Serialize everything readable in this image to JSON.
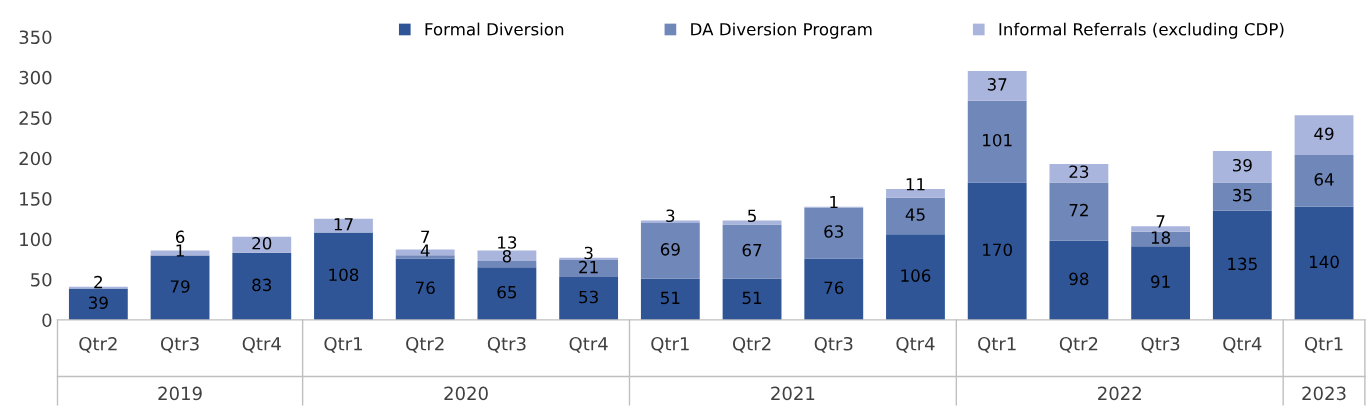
{
  "chart_data": {
    "type": "bar",
    "stacked": true,
    "categories": [
      "Qtr2",
      "Qtr3",
      "Qtr4",
      "Qtr1",
      "Qtr2",
      "Qtr3",
      "Qtr4",
      "Qtr1",
      "Qtr2",
      "Qtr3",
      "Qtr4",
      "Qtr1",
      "Qtr2",
      "Qtr3",
      "Qtr4",
      "Qtr1"
    ],
    "series": [
      {
        "name": "Formal Diversion",
        "color": "#2f5597",
        "values": [
          39,
          79,
          83,
          108,
          76,
          65,
          53,
          51,
          51,
          76,
          106,
          170,
          98,
          91,
          135,
          140
        ],
        "value_labels": [
          "39",
          "79",
          "83",
          "108",
          "76",
          "65",
          "53",
          "51",
          "51",
          "76",
          "106",
          "170",
          "98",
          "91",
          "135",
          "140"
        ]
      },
      {
        "name": "DA Diversion Program",
        "color": "#6f87b9",
        "values": [
          0,
          1,
          0,
          0,
          4,
          8,
          21,
          69,
          67,
          63,
          45,
          101,
          72,
          18,
          35,
          64
        ],
        "value_labels": [
          null,
          "1",
          null,
          null,
          "4",
          "8",
          "21",
          "69",
          "67",
          "63",
          "45",
          "101",
          "72",
          "18",
          "35",
          "64"
        ]
      },
      {
        "name": "Informal Referrals (excluding CDP)",
        "color": "#a9b5dc",
        "values": [
          2,
          6,
          20,
          17,
          7,
          13,
          3,
          3,
          5,
          1,
          11,
          37,
          23,
          7,
          39,
          49
        ],
        "value_labels": [
          "2",
          "6",
          "20",
          "17",
          "7",
          "13",
          "3",
          "3",
          "5",
          "1",
          "11",
          "37",
          "23",
          "7",
          "39",
          "49"
        ]
      }
    ],
    "annotations": [
      "2019",
      "2020",
      "2021",
      "2022",
      "2023"
    ],
    "ylim": [
      0,
      350
    ],
    "yticks": [
      0,
      50,
      100,
      150,
      200,
      250,
      300,
      350
    ],
    "legend": "top",
    "grid": false
  }
}
